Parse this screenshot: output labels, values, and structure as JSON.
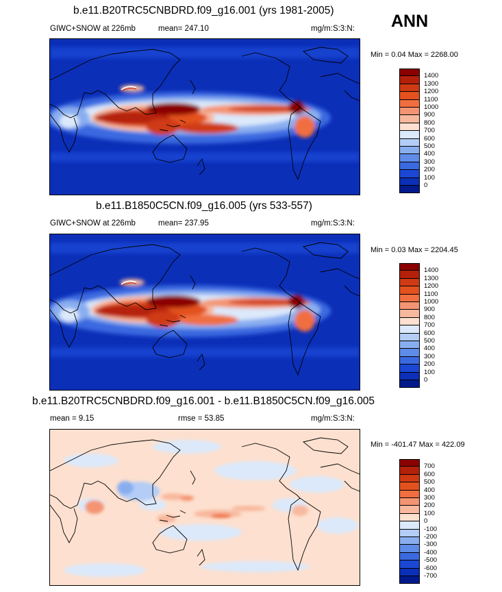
{
  "season": "ANN",
  "panels": [
    {
      "title": "b.e11.B20TRC5CNBDRD.f09_g16.001 (yrs 1981-2005)",
      "left_label": "GIWC+SNOW at 226mb",
      "mean_label": "mean= 247.10",
      "units": "mg/m:S:3:N:",
      "minmax": "Min =   0.04 Max = 2268.00"
    },
    {
      "title": "b.e11.B1850C5CN.f09_g16.005 (yrs 533-557)",
      "left_label": "GIWC+SNOW at 226mb",
      "mean_label": "mean= 237.95",
      "units": "mg/m:S:3:N:",
      "minmax": "Min =   0.03 Max = 2204.45"
    },
    {
      "title": "b.e11.B20TRC5CNBDRD.f09_g16.001 - b.e11.B1850C5CN.f09_g16.005",
      "left_label": "mean =   9.15",
      "mid_label": "rmse =  53.85",
      "units": "mg/m:S:3:N:",
      "minmax": "Min = -401.47 Max = 422.09"
    }
  ],
  "chart_data": [
    {
      "type": "heatmap",
      "title": "b.e11.B20TRC5CNBDRD.f09_g16.001 (yrs 1981-2005)",
      "field": "GIWC+SNOW at 226mb",
      "units": "mg/m:S:3:N:",
      "mean": 247.1,
      "min": 0.04,
      "max": 2268.0,
      "colorbar": {
        "levels": [
          "1400",
          "1300",
          "1200",
          "1100",
          "1000",
          "900",
          "800",
          "700",
          "600",
          "500",
          "400",
          "300",
          "200",
          "100",
          "0"
        ],
        "colors": [
          "#8b0000",
          "#b5200b",
          "#cf3a14",
          "#e3511f",
          "#f06e3f",
          "#f49472",
          "#f8b89e",
          "#fde0cf",
          "#dbe9fb",
          "#b3cdf6",
          "#89aef0",
          "#5e8ce8",
          "#3a69e0",
          "#1b47d4",
          "#0c2fb8",
          "#001a8c"
        ]
      }
    },
    {
      "type": "heatmap",
      "title": "b.e11.B1850C5CN.f09_g16.005 (yrs 533-557)",
      "field": "GIWC+SNOW at 226mb",
      "units": "mg/m:S:3:N:",
      "mean": 237.95,
      "min": 0.03,
      "max": 2204.45,
      "colorbar": {
        "levels": [
          "1400",
          "1300",
          "1200",
          "1100",
          "1000",
          "900",
          "800",
          "700",
          "600",
          "500",
          "400",
          "300",
          "200",
          "100",
          "0"
        ],
        "colors": [
          "#8b0000",
          "#b5200b",
          "#cf3a14",
          "#e3511f",
          "#f06e3f",
          "#f49472",
          "#f8b89e",
          "#fde0cf",
          "#dbe9fb",
          "#b3cdf6",
          "#89aef0",
          "#5e8ce8",
          "#3a69e0",
          "#1b47d4",
          "#0c2fb8",
          "#001a8c"
        ]
      }
    },
    {
      "type": "heatmap",
      "title": "b.e11.B20TRC5CNBDRD.f09_g16.001 - b.e11.B1850C5CN.f09_g16.005",
      "units": "mg/m:S:3:N:",
      "mean": 9.15,
      "rmse": 53.85,
      "min": -401.47,
      "max": 422.09,
      "colorbar": {
        "levels": [
          "700",
          "600",
          "500",
          "400",
          "300",
          "200",
          "100",
          "0",
          "-100",
          "-200",
          "-300",
          "-400",
          "-500",
          "-600",
          "-700"
        ],
        "colors": [
          "#8b0000",
          "#b5200b",
          "#cf3a14",
          "#e3511f",
          "#f06e3f",
          "#f49472",
          "#f8b89e",
          "#fde0cf",
          "#dbe9fb",
          "#b3cdf6",
          "#89aef0",
          "#5e8ce8",
          "#3a69e0",
          "#1b47d4",
          "#0c2fb8",
          "#001a8c"
        ]
      }
    }
  ]
}
